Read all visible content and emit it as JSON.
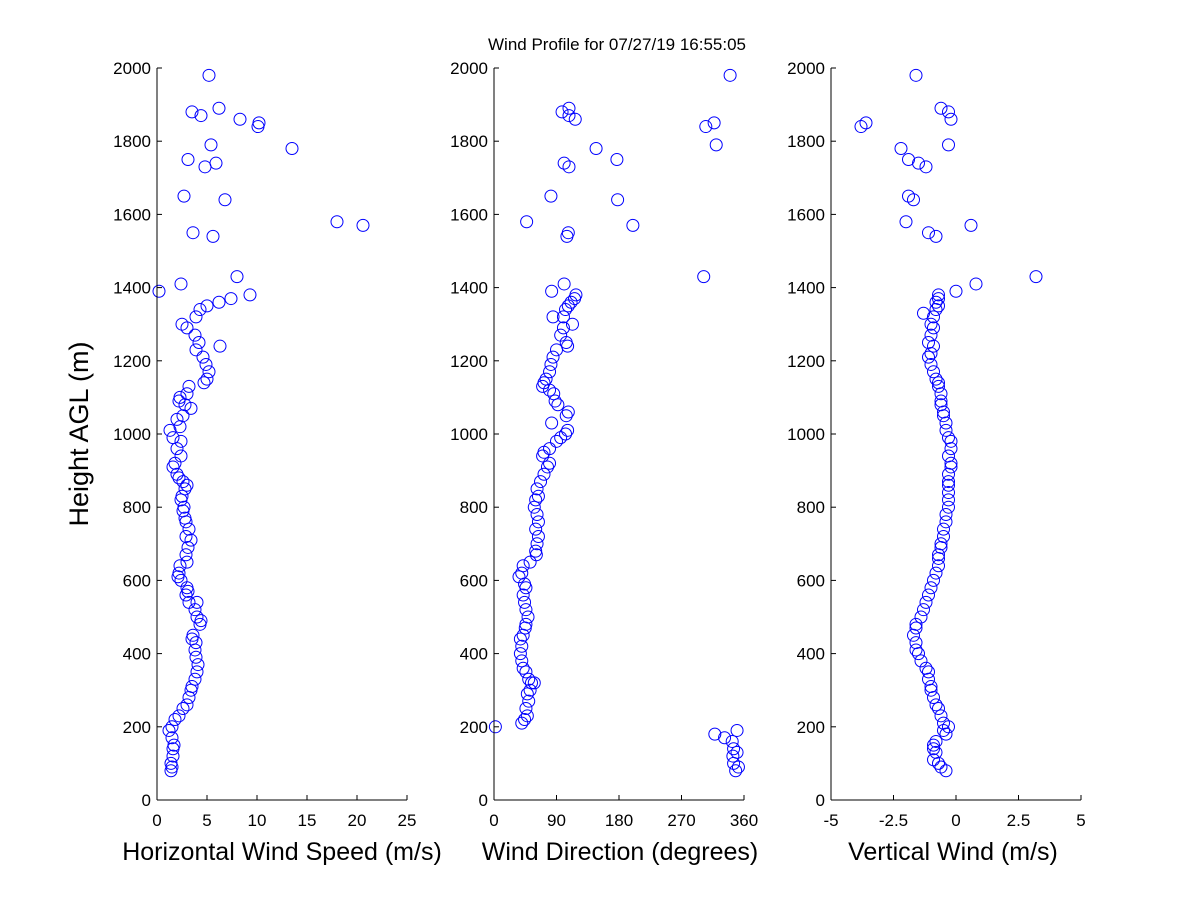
{
  "title": "Wind Profile for  07/27/19 16:55:05",
  "colors": {
    "marker": "#0000ff",
    "axis": "#000000",
    "background": "#ffffff"
  },
  "chart_data": [
    {
      "type": "scatter",
      "xlabel": "Horizontal Wind Speed (m/s)",
      "ylabel": "Height AGL (m)",
      "xlim": [
        0,
        25
      ],
      "ylim": [
        0,
        2000
      ],
      "xticks": [
        0,
        5,
        10,
        15,
        20,
        25
      ],
      "xtick_labels": [
        "0",
        "5",
        "10",
        "15",
        "20",
        "25"
      ],
      "yticks": [
        0,
        200,
        400,
        600,
        800,
        1000,
        1200,
        1400,
        1600,
        1800,
        2000
      ],
      "ytick_labels": [
        "0",
        "200",
        "400",
        "600",
        "800",
        "1000",
        "1200",
        "1400",
        "1600",
        "1800",
        "2000"
      ],
      "grid": false,
      "points": [
        [
          5.2,
          1980
        ],
        [
          3.5,
          1880
        ],
        [
          6.2,
          1890
        ],
        [
          4.4,
          1870
        ],
        [
          8.3,
          1860
        ],
        [
          10.2,
          1850
        ],
        [
          10.1,
          1840
        ],
        [
          5.4,
          1790
        ],
        [
          13.5,
          1780
        ],
        [
          3.1,
          1750
        ],
        [
          5.9,
          1740
        ],
        [
          4.8,
          1730
        ],
        [
          2.7,
          1650
        ],
        [
          6.8,
          1640
        ],
        [
          18.0,
          1580
        ],
        [
          20.6,
          1570
        ],
        [
          3.6,
          1550
        ],
        [
          5.6,
          1540
        ],
        [
          8.0,
          1430
        ],
        [
          2.4,
          1410
        ],
        [
          0.2,
          1390
        ],
        [
          9.3,
          1380
        ],
        [
          7.4,
          1370
        ],
        [
          6.2,
          1360
        ],
        [
          5.0,
          1350
        ],
        [
          4.3,
          1340
        ],
        [
          3.9,
          1320
        ],
        [
          2.5,
          1300
        ],
        [
          3.0,
          1290
        ],
        [
          3.8,
          1270
        ],
        [
          4.2,
          1250
        ],
        [
          6.3,
          1240
        ],
        [
          3.9,
          1230
        ],
        [
          4.6,
          1210
        ],
        [
          4.9,
          1190
        ],
        [
          5.2,
          1170
        ],
        [
          5.0,
          1150
        ],
        [
          4.7,
          1140
        ],
        [
          3.2,
          1130
        ],
        [
          3.0,
          1110
        ],
        [
          2.3,
          1100
        ],
        [
          2.2,
          1090
        ],
        [
          2.8,
          1080
        ],
        [
          3.4,
          1070
        ],
        [
          2.6,
          1050
        ],
        [
          2.0,
          1040
        ],
        [
          2.3,
          1020
        ],
        [
          1.3,
          1010
        ],
        [
          1.6,
          990
        ],
        [
          2.4,
          980
        ],
        [
          2.0,
          960
        ],
        [
          2.4,
          940
        ],
        [
          1.8,
          920
        ],
        [
          1.6,
          910
        ],
        [
          2.0,
          890
        ],
        [
          2.2,
          880
        ],
        [
          2.6,
          870
        ],
        [
          3.0,
          860
        ],
        [
          2.8,
          850
        ],
        [
          2.5,
          830
        ],
        [
          2.4,
          820
        ],
        [
          2.7,
          800
        ],
        [
          2.6,
          790
        ],
        [
          2.8,
          770
        ],
        [
          2.9,
          760
        ],
        [
          3.2,
          740
        ],
        [
          2.9,
          720
        ],
        [
          3.4,
          710
        ],
        [
          3.1,
          690
        ],
        [
          2.9,
          670
        ],
        [
          3.0,
          650
        ],
        [
          2.3,
          640
        ],
        [
          2.2,
          620
        ],
        [
          2.1,
          610
        ],
        [
          2.4,
          600
        ],
        [
          3.0,
          580
        ],
        [
          3.1,
          570
        ],
        [
          2.9,
          560
        ],
        [
          3.2,
          540
        ],
        [
          4.0,
          540
        ],
        [
          3.8,
          520
        ],
        [
          4.0,
          500
        ],
        [
          4.4,
          490
        ],
        [
          4.3,
          480
        ],
        [
          3.6,
          450
        ],
        [
          3.5,
          440
        ],
        [
          3.9,
          430
        ],
        [
          3.8,
          410
        ],
        [
          3.9,
          390
        ],
        [
          4.1,
          370
        ],
        [
          4.0,
          350
        ],
        [
          3.8,
          330
        ],
        [
          3.5,
          310
        ],
        [
          3.4,
          300
        ],
        [
          3.2,
          280
        ],
        [
          3.0,
          260
        ],
        [
          2.6,
          250
        ],
        [
          2.2,
          230
        ],
        [
          1.8,
          220
        ],
        [
          1.5,
          200
        ],
        [
          1.2,
          190
        ],
        [
          1.5,
          170
        ],
        [
          1.7,
          150
        ],
        [
          1.6,
          140
        ],
        [
          1.6,
          120
        ],
        [
          1.4,
          100
        ],
        [
          1.5,
          90
        ],
        [
          1.4,
          80
        ]
      ]
    },
    {
      "type": "scatter",
      "xlabel": "Wind Direction (degrees)",
      "xlim": [
        0,
        360
      ],
      "ylim": [
        0,
        2000
      ],
      "xticks": [
        0,
        90,
        180,
        270,
        360
      ],
      "xtick_labels": [
        "0",
        "90",
        "180",
        "270",
        "360"
      ],
      "yticks": [
        0,
        200,
        400,
        600,
        800,
        1000,
        1200,
        1400,
        1600,
        1800,
        2000
      ],
      "ytick_labels": [
        "0",
        "200",
        "400",
        "600",
        "800",
        "1000",
        "1200",
        "1400",
        "1600",
        "1800",
        "2000"
      ],
      "grid": false,
      "points": [
        [
          340,
          1980
        ],
        [
          98,
          1880
        ],
        [
          108,
          1890
        ],
        [
          108,
          1870
        ],
        [
          117,
          1860
        ],
        [
          305,
          1840
        ],
        [
          317,
          1850
        ],
        [
          147,
          1780
        ],
        [
          320,
          1790
        ],
        [
          177,
          1750
        ],
        [
          101,
          1740
        ],
        [
          108,
          1730
        ],
        [
          82,
          1650
        ],
        [
          178,
          1640
        ],
        [
          47,
          1580
        ],
        [
          200,
          1570
        ],
        [
          107,
          1550
        ],
        [
          105,
          1540
        ],
        [
          302,
          1430
        ],
        [
          101,
          1410
        ],
        [
          83,
          1390
        ],
        [
          118,
          1380
        ],
        [
          116,
          1370
        ],
        [
          111,
          1360
        ],
        [
          107,
          1350
        ],
        [
          103,
          1340
        ],
        [
          100,
          1320
        ],
        [
          85,
          1320
        ],
        [
          113,
          1300
        ],
        [
          100,
          1290
        ],
        [
          96,
          1270
        ],
        [
          104,
          1250
        ],
        [
          106,
          1240
        ],
        [
          90,
          1230
        ],
        [
          85,
          1210
        ],
        [
          82,
          1190
        ],
        [
          80,
          1170
        ],
        [
          75,
          1150
        ],
        [
          72,
          1140
        ],
        [
          70,
          1130
        ],
        [
          80,
          1120
        ],
        [
          86,
          1110
        ],
        [
          88,
          1090
        ],
        [
          92,
          1080
        ],
        [
          107,
          1060
        ],
        [
          104,
          1050
        ],
        [
          83,
          1030
        ],
        [
          106,
          1010
        ],
        [
          103,
          1000
        ],
        [
          96,
          990
        ],
        [
          90,
          980
        ],
        [
          80,
          960
        ],
        [
          72,
          950
        ],
        [
          70,
          940
        ],
        [
          80,
          920
        ],
        [
          77,
          910
        ],
        [
          72,
          890
        ],
        [
          67,
          870
        ],
        [
          62,
          850
        ],
        [
          64,
          830
        ],
        [
          60,
          820
        ],
        [
          58,
          800
        ],
        [
          62,
          780
        ],
        [
          64,
          760
        ],
        [
          60,
          740
        ],
        [
          64,
          720
        ],
        [
          62,
          700
        ],
        [
          60,
          680
        ],
        [
          61,
          670
        ],
        [
          52,
          650
        ],
        [
          42,
          640
        ],
        [
          40,
          620
        ],
        [
          36,
          610
        ],
        [
          44,
          590
        ],
        [
          46,
          580
        ],
        [
          42,
          560
        ],
        [
          44,
          540
        ],
        [
          46,
          520
        ],
        [
          49,
          500
        ],
        [
          46,
          480
        ],
        [
          45,
          470
        ],
        [
          42,
          450
        ],
        [
          38,
          440
        ],
        [
          40,
          420
        ],
        [
          38,
          400
        ],
        [
          40,
          380
        ],
        [
          42,
          360
        ],
        [
          46,
          350
        ],
        [
          50,
          330
        ],
        [
          54,
          320
        ],
        [
          58,
          320
        ],
        [
          52,
          300
        ],
        [
          48,
          290
        ],
        [
          50,
          270
        ],
        [
          46,
          250
        ],
        [
          48,
          230
        ],
        [
          44,
          220
        ],
        [
          40,
          210
        ],
        [
          2,
          200
        ],
        [
          350,
          190
        ],
        [
          318,
          180
        ],
        [
          332,
          170
        ],
        [
          343,
          160
        ],
        [
          345,
          140
        ],
        [
          350,
          130
        ],
        [
          344,
          120
        ],
        [
          345,
          100
        ],
        [
          352,
          90
        ],
        [
          348,
          80
        ]
      ]
    },
    {
      "type": "scatter",
      "xlabel": "Vertical Wind (m/s)",
      "xlim": [
        -5,
        5
      ],
      "ylim": [
        0,
        2000
      ],
      "xticks": [
        -5,
        -2.5,
        0,
        2.5,
        5
      ],
      "xtick_labels": [
        "-5",
        "-2.5",
        "0",
        "2.5",
        "5"
      ],
      "yticks": [
        0,
        200,
        400,
        600,
        800,
        1000,
        1200,
        1400,
        1600,
        1800,
        2000
      ],
      "ytick_labels": [
        "0",
        "200",
        "400",
        "600",
        "800",
        "1000",
        "1200",
        "1400",
        "1600",
        "1800",
        "2000"
      ],
      "grid": false,
      "points": [
        [
          -1.6,
          1980
        ],
        [
          -0.6,
          1890
        ],
        [
          -0.3,
          1880
        ],
        [
          -0.2,
          1860
        ],
        [
          -3.8,
          1840
        ],
        [
          -3.6,
          1850
        ],
        [
          -0.3,
          1790
        ],
        [
          -2.2,
          1780
        ],
        [
          -1.9,
          1750
        ],
        [
          -1.5,
          1740
        ],
        [
          -1.2,
          1730
        ],
        [
          -1.9,
          1650
        ],
        [
          -1.7,
          1640
        ],
        [
          -2.0,
          1580
        ],
        [
          0.6,
          1570
        ],
        [
          -1.1,
          1550
        ],
        [
          -0.8,
          1540
        ],
        [
          3.2,
          1430
        ],
        [
          0.8,
          1410
        ],
        [
          0.0,
          1390
        ],
        [
          -0.7,
          1380
        ],
        [
          -0.7,
          1370
        ],
        [
          -0.8,
          1360
        ],
        [
          -0.7,
          1350
        ],
        [
          -0.8,
          1340
        ],
        [
          -1.3,
          1330
        ],
        [
          -0.9,
          1320
        ],
        [
          -1.0,
          1300
        ],
        [
          -0.9,
          1290
        ],
        [
          -1.0,
          1270
        ],
        [
          -1.1,
          1250
        ],
        [
          -0.9,
          1240
        ],
        [
          -1.0,
          1220
        ],
        [
          -1.1,
          1210
        ],
        [
          -1.0,
          1190
        ],
        [
          -0.9,
          1170
        ],
        [
          -0.8,
          1150
        ],
        [
          -0.7,
          1140
        ],
        [
          -0.7,
          1130
        ],
        [
          -0.6,
          1110
        ],
        [
          -0.6,
          1090
        ],
        [
          -0.6,
          1080
        ],
        [
          -0.5,
          1060
        ],
        [
          -0.5,
          1050
        ],
        [
          -0.4,
          1030
        ],
        [
          -0.4,
          1010
        ],
        [
          -0.3,
          990
        ],
        [
          -0.2,
          980
        ],
        [
          -0.2,
          960
        ],
        [
          -0.3,
          940
        ],
        [
          -0.2,
          920
        ],
        [
          -0.2,
          910
        ],
        [
          -0.3,
          890
        ],
        [
          -0.3,
          870
        ],
        [
          -0.3,
          860
        ],
        [
          -0.3,
          840
        ],
        [
          -0.3,
          820
        ],
        [
          -0.3,
          800
        ],
        [
          -0.4,
          780
        ],
        [
          -0.4,
          760
        ],
        [
          -0.5,
          740
        ],
        [
          -0.5,
          720
        ],
        [
          -0.6,
          700
        ],
        [
          -0.6,
          690
        ],
        [
          -0.7,
          670
        ],
        [
          -0.7,
          660
        ],
        [
          -0.7,
          640
        ],
        [
          -0.8,
          620
        ],
        [
          -0.9,
          600
        ],
        [
          -1.0,
          580
        ],
        [
          -1.1,
          560
        ],
        [
          -1.2,
          540
        ],
        [
          -1.3,
          520
        ],
        [
          -1.4,
          500
        ],
        [
          -1.6,
          480
        ],
        [
          -1.6,
          470
        ],
        [
          -1.7,
          450
        ],
        [
          -1.6,
          430
        ],
        [
          -1.6,
          410
        ],
        [
          -1.5,
          400
        ],
        [
          -1.4,
          380
        ],
        [
          -1.2,
          360
        ],
        [
          -1.1,
          350
        ],
        [
          -1.1,
          330
        ],
        [
          -1.0,
          310
        ],
        [
          -1.0,
          300
        ],
        [
          -0.9,
          280
        ],
        [
          -0.8,
          260
        ],
        [
          -0.7,
          250
        ],
        [
          -0.6,
          230
        ],
        [
          -0.5,
          210
        ],
        [
          -0.3,
          200
        ],
        [
          -0.5,
          190
        ],
        [
          -0.4,
          180
        ],
        [
          -0.8,
          160
        ],
        [
          -0.9,
          150
        ],
        [
          -0.9,
          140
        ],
        [
          -0.8,
          130
        ],
        [
          -0.9,
          110
        ],
        [
          -0.7,
          100
        ],
        [
          -0.6,
          90
        ],
        [
          -0.4,
          80
        ]
      ]
    }
  ]
}
